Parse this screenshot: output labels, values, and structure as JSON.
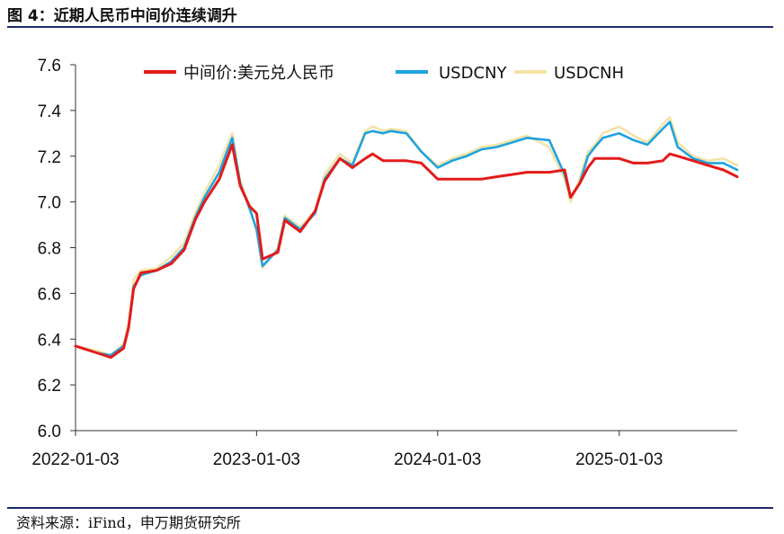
{
  "figure_title": "图 4：近期人民币中间价连续调升",
  "source_note": "资料来源：iFind，申万期货研究所",
  "chart_data": {
    "type": "line",
    "xlabel": "",
    "ylabel": "",
    "ylim": [
      6.0,
      7.6
    ],
    "y_ticks": [
      "6.0",
      "6.2",
      "6.4",
      "6.6",
      "6.8",
      "7.0",
      "7.2",
      "7.4",
      "7.6"
    ],
    "x_ticks": [
      "2022-01-03",
      "2023-01-03",
      "2024-01-03",
      "2025-01-03"
    ],
    "x_range": [
      "2022-01-03",
      "2025-08-29"
    ],
    "grid": false,
    "legend_position": "top",
    "series": [
      {
        "name": "中间价:美元兑人民币",
        "color": "#e31b1b",
        "x": [
          "2022-01-03",
          "2022-02-15",
          "2022-03-15",
          "2022-04-10",
          "2022-04-20",
          "2022-04-30",
          "2022-05-15",
          "2022-06-15",
          "2022-07-15",
          "2022-08-10",
          "2022-09-01",
          "2022-09-20",
          "2022-10-20",
          "2022-11-01",
          "2022-11-15",
          "2022-12-01",
          "2022-12-20",
          "2023-01-03",
          "2023-01-15",
          "2023-02-15",
          "2023-03-01",
          "2023-04-01",
          "2023-05-01",
          "2023-05-20",
          "2023-06-20",
          "2023-07-15",
          "2023-08-10",
          "2023-08-25",
          "2023-09-15",
          "2023-10-01",
          "2023-11-01",
          "2023-12-01",
          "2024-01-03",
          "2024-02-01",
          "2024-03-01",
          "2024-04-01",
          "2024-05-01",
          "2024-06-01",
          "2024-07-01",
          "2024-08-15",
          "2024-09-15",
          "2024-09-27",
          "2024-10-15",
          "2024-11-01",
          "2024-11-15",
          "2024-12-01",
          "2025-01-03",
          "2025-02-01",
          "2025-03-01",
          "2025-04-01",
          "2025-04-15",
          "2025-05-01",
          "2025-06-01",
          "2025-07-01",
          "2025-08-01",
          "2025-08-29"
        ],
        "values": [
          6.37,
          6.34,
          6.32,
          6.36,
          6.45,
          6.62,
          6.69,
          6.7,
          6.73,
          6.79,
          6.92,
          7.0,
          7.1,
          7.17,
          7.25,
          7.07,
          6.98,
          6.95,
          6.75,
          6.78,
          6.92,
          6.87,
          6.96,
          7.09,
          7.19,
          7.15,
          7.19,
          7.21,
          7.18,
          7.18,
          7.18,
          7.17,
          7.1,
          7.1,
          7.1,
          7.1,
          7.11,
          7.12,
          7.13,
          7.13,
          7.14,
          7.02,
          7.08,
          7.15,
          7.19,
          7.19,
          7.19,
          7.17,
          7.17,
          7.18,
          7.21,
          7.2,
          7.18,
          7.16,
          7.14,
          7.11
        ]
      },
      {
        "name": "USDCNY",
        "color": "#1fa3e0",
        "x": [
          "2022-01-03",
          "2022-02-15",
          "2022-03-15",
          "2022-04-10",
          "2022-04-20",
          "2022-04-30",
          "2022-05-15",
          "2022-06-15",
          "2022-07-15",
          "2022-08-10",
          "2022-09-01",
          "2022-09-20",
          "2022-10-20",
          "2022-11-01",
          "2022-11-15",
          "2022-12-01",
          "2022-12-20",
          "2023-01-03",
          "2023-01-15",
          "2023-02-15",
          "2023-03-01",
          "2023-04-01",
          "2023-05-01",
          "2023-05-20",
          "2023-06-20",
          "2023-07-15",
          "2023-08-10",
          "2023-08-25",
          "2023-09-15",
          "2023-10-01",
          "2023-11-01",
          "2023-12-01",
          "2024-01-03",
          "2024-02-01",
          "2024-03-01",
          "2024-04-01",
          "2024-05-01",
          "2024-06-01",
          "2024-07-01",
          "2024-08-15",
          "2024-09-15",
          "2024-09-27",
          "2024-10-15",
          "2024-11-01",
          "2024-11-15",
          "2024-12-01",
          "2025-01-03",
          "2025-02-01",
          "2025-03-01",
          "2025-04-01",
          "2025-04-15",
          "2025-05-01",
          "2025-06-01",
          "2025-07-01",
          "2025-08-01",
          "2025-08-29"
        ],
        "values": [
          6.37,
          6.34,
          6.33,
          6.37,
          6.45,
          6.63,
          6.68,
          6.7,
          6.74,
          6.8,
          6.93,
          7.02,
          7.13,
          7.2,
          7.28,
          7.08,
          6.97,
          6.88,
          6.72,
          6.79,
          6.93,
          6.88,
          6.95,
          7.1,
          7.19,
          7.16,
          7.3,
          7.31,
          7.3,
          7.31,
          7.3,
          7.22,
          7.15,
          7.18,
          7.2,
          7.23,
          7.24,
          7.26,
          7.28,
          7.27,
          7.12,
          7.02,
          7.08,
          7.2,
          7.24,
          7.28,
          7.3,
          7.27,
          7.25,
          7.32,
          7.35,
          7.24,
          7.19,
          7.17,
          7.17,
          7.14
        ]
      },
      {
        "name": "USDCNH",
        "color": "#f5e3a6",
        "x": [
          "2022-01-03",
          "2022-02-15",
          "2022-03-15",
          "2022-04-10",
          "2022-04-20",
          "2022-04-30",
          "2022-05-15",
          "2022-06-15",
          "2022-07-15",
          "2022-08-10",
          "2022-09-01",
          "2022-09-20",
          "2022-10-20",
          "2022-11-01",
          "2022-11-15",
          "2022-12-01",
          "2022-12-20",
          "2023-01-03",
          "2023-01-15",
          "2023-02-15",
          "2023-03-01",
          "2023-04-01",
          "2023-05-01",
          "2023-05-20",
          "2023-06-20",
          "2023-07-15",
          "2023-08-10",
          "2023-08-25",
          "2023-09-15",
          "2023-10-01",
          "2023-11-01",
          "2023-12-01",
          "2024-01-03",
          "2024-02-01",
          "2024-03-01",
          "2024-04-01",
          "2024-05-01",
          "2024-06-01",
          "2024-07-01",
          "2024-08-15",
          "2024-09-15",
          "2024-09-27",
          "2024-10-15",
          "2024-11-01",
          "2024-11-15",
          "2024-12-01",
          "2025-01-03",
          "2025-02-01",
          "2025-03-01",
          "2025-04-01",
          "2025-04-15",
          "2025-05-01",
          "2025-06-01",
          "2025-07-01",
          "2025-08-01",
          "2025-08-29"
        ],
        "values": [
          6.37,
          6.35,
          6.33,
          6.38,
          6.47,
          6.66,
          6.7,
          6.71,
          6.76,
          6.82,
          6.95,
          7.04,
          7.16,
          7.23,
          7.3,
          7.09,
          6.98,
          6.87,
          6.71,
          6.8,
          6.94,
          6.89,
          6.96,
          7.12,
          7.21,
          7.17,
          7.31,
          7.33,
          7.31,
          7.32,
          7.31,
          7.22,
          7.16,
          7.19,
          7.21,
          7.24,
          7.25,
          7.27,
          7.29,
          7.24,
          7.1,
          7.0,
          7.1,
          7.22,
          7.25,
          7.3,
          7.33,
          7.29,
          7.26,
          7.34,
          7.37,
          7.26,
          7.2,
          7.18,
          7.19,
          7.16
        ]
      }
    ]
  }
}
